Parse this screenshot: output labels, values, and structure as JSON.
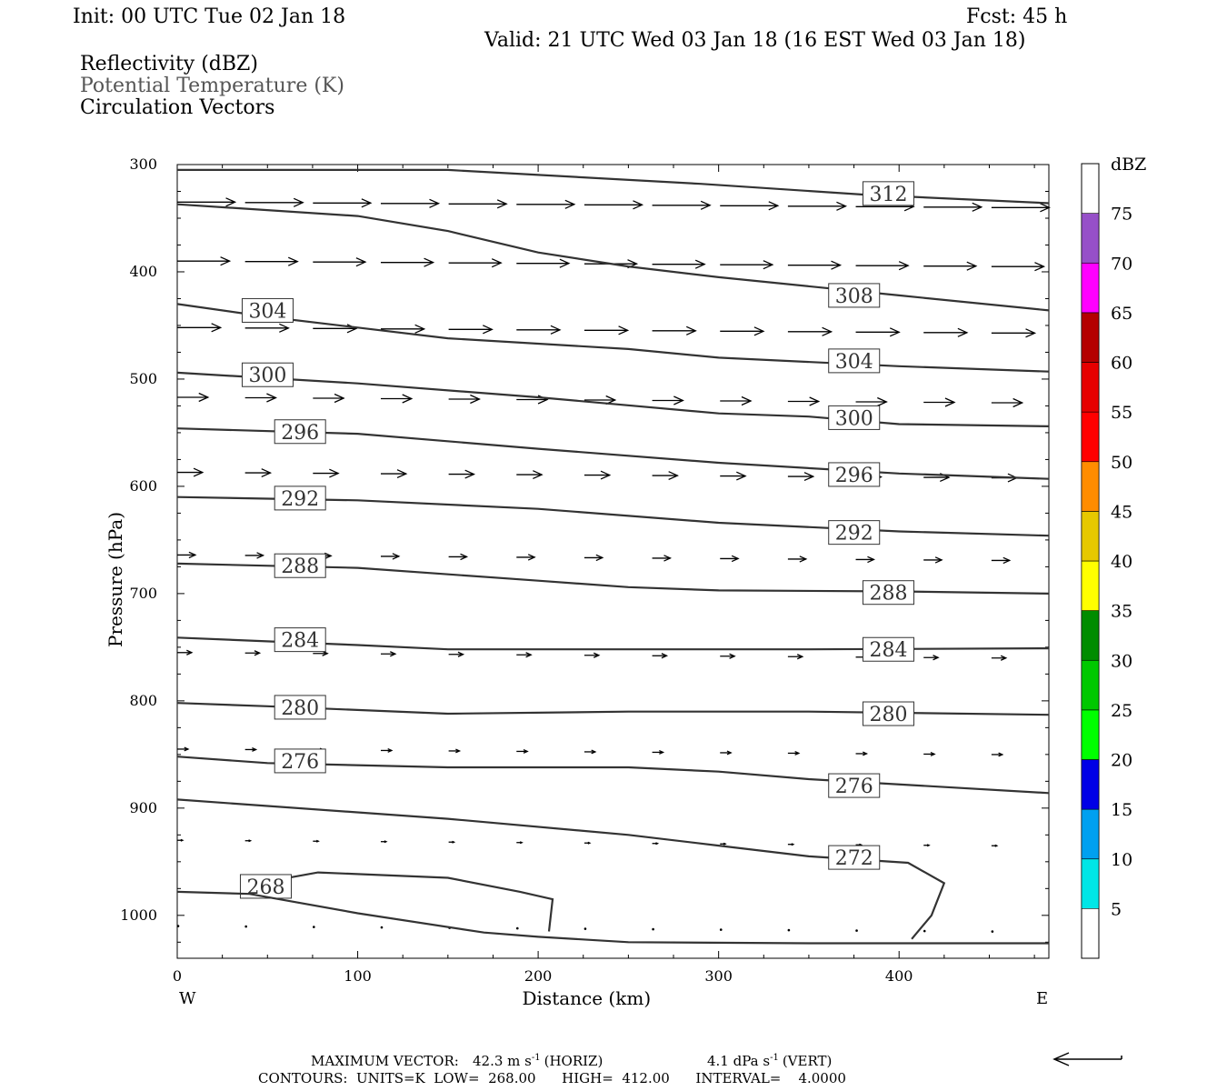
{
  "header": {
    "init": "Init: 00 UTC Tue 02 Jan 18",
    "fcst": "Fcst:   45 h",
    "valid": "Valid: 21 UTC Wed 03 Jan 18 (16 EST Wed 03 Jan 18)",
    "legend_lines": [
      {
        "text": "Reflectivity (dBZ)",
        "color": "#000000"
      },
      {
        "text": "Potential Temperature (K)",
        "color": "#555555"
      },
      {
        "text": "Circulation Vectors",
        "color": "#000000"
      }
    ]
  },
  "footer": {
    "max_vector_prefix": "MAXIMUM VECTOR:",
    "max_vector_horiz": "42.3 m s",
    "max_vector_horiz_suffix": "(HORIZ)",
    "max_vector_vert": "4.1 dPa s",
    "max_vector_vert_suffix": "(VERT)",
    "exponent": "-1",
    "contours_line": "CONTOURS:  UNITS=K  LOW=  268.00      HIGH=  412.00      INTERVAL=    4.0000"
  },
  "colors": {
    "contour": "#333333",
    "vector": "#000000",
    "axis": "#000000"
  },
  "chart_data": {
    "type": "cross-section",
    "xlabel": "Distance (km)",
    "ylabel": "Pressure (hPa)",
    "xlim": [
      0,
      483
    ],
    "ylim": [
      1040,
      300
    ],
    "x_ticks": [
      0,
      100,
      200,
      300,
      400
    ],
    "y_ticks": [
      300,
      400,
      500,
      600,
      700,
      800,
      900,
      1000
    ],
    "x_end_labels": {
      "left": "W",
      "right": "E"
    },
    "contour_units": "K",
    "contours": [
      {
        "label": "312",
        "points": [
          [
            0,
            305
          ],
          [
            150,
            305
          ],
          [
            290,
            318
          ],
          [
            380,
            328
          ],
          [
            483,
            336
          ]
        ],
        "labels_at": [
          [
            382,
            327
          ]
        ]
      },
      {
        "label": "308",
        "points": [
          [
            0,
            337
          ],
          [
            100,
            348
          ],
          [
            150,
            362
          ],
          [
            200,
            382
          ],
          [
            250,
            395
          ],
          [
            300,
            405
          ],
          [
            400,
            422
          ],
          [
            483,
            436
          ]
        ],
        "labels_at": [
          [
            363,
            422
          ]
        ]
      },
      {
        "label": "304",
        "points": [
          [
            0,
            430
          ],
          [
            50,
            442
          ],
          [
            150,
            462
          ],
          [
            250,
            472
          ],
          [
            300,
            480
          ],
          [
            400,
            488
          ],
          [
            483,
            493
          ]
        ],
        "labels_at": [
          [
            38,
            436
          ],
          [
            363,
            483
          ]
        ]
      },
      {
        "label": "300",
        "points": [
          [
            0,
            494
          ],
          [
            100,
            504
          ],
          [
            200,
            517
          ],
          [
            300,
            532
          ],
          [
            350,
            535
          ],
          [
            400,
            542
          ],
          [
            483,
            544
          ]
        ],
        "labels_at": [
          [
            38,
            496
          ],
          [
            363,
            536
          ]
        ]
      },
      {
        "label": "296",
        "points": [
          [
            0,
            546
          ],
          [
            100,
            551
          ],
          [
            200,
            565
          ],
          [
            300,
            578
          ],
          [
            400,
            588
          ],
          [
            483,
            593
          ]
        ],
        "labels_at": [
          [
            56,
            549
          ],
          [
            363,
            589
          ]
        ]
      },
      {
        "label": "292",
        "points": [
          [
            0,
            610
          ],
          [
            100,
            613
          ],
          [
            200,
            621
          ],
          [
            300,
            634
          ],
          [
            400,
            642
          ],
          [
            483,
            646
          ]
        ],
        "labels_at": [
          [
            56,
            611
          ],
          [
            363,
            643
          ]
        ]
      },
      {
        "label": "288",
        "points": [
          [
            0,
            672
          ],
          [
            100,
            676
          ],
          [
            200,
            688
          ],
          [
            250,
            694
          ],
          [
            300,
            697
          ],
          [
            400,
            698
          ],
          [
            483,
            700
          ]
        ],
        "labels_at": [
          [
            56,
            674
          ],
          [
            382,
            699
          ]
        ]
      },
      {
        "label": "284",
        "points": [
          [
            0,
            741
          ],
          [
            100,
            748
          ],
          [
            150,
            752
          ],
          [
            250,
            752
          ],
          [
            350,
            752
          ],
          [
            483,
            751
          ]
        ],
        "labels_at": [
          [
            56,
            743
          ],
          [
            382,
            752
          ]
        ]
      },
      {
        "label": "280",
        "points": [
          [
            0,
            802
          ],
          [
            50,
            805
          ],
          [
            150,
            812
          ],
          [
            250,
            810
          ],
          [
            350,
            810
          ],
          [
            483,
            813
          ]
        ],
        "labels_at": [
          [
            56,
            806
          ],
          [
            382,
            812
          ]
        ]
      },
      {
        "label": "276",
        "points": [
          [
            0,
            852
          ],
          [
            50,
            858
          ],
          [
            150,
            862
          ],
          [
            250,
            862
          ],
          [
            300,
            866
          ],
          [
            350,
            873
          ],
          [
            483,
            886
          ]
        ],
        "labels_at": [
          [
            56,
            856
          ],
          [
            363,
            879
          ]
        ]
      },
      {
        "label": "272",
        "points": [
          [
            0,
            892
          ],
          [
            50,
            898
          ],
          [
            150,
            910
          ],
          [
            250,
            925
          ],
          [
            300,
            935
          ],
          [
            350,
            945
          ],
          [
            405,
            951
          ],
          [
            425,
            970
          ],
          [
            418,
            1000
          ],
          [
            407,
            1022
          ]
        ],
        "labels_at": [
          [
            363,
            946
          ]
        ]
      },
      {
        "label": "268",
        "points": [
          [
            45,
            970
          ],
          [
            78,
            960
          ],
          [
            150,
            965
          ],
          [
            190,
            978
          ],
          [
            208,
            985
          ],
          [
            206,
            1015
          ]
        ],
        "labels_at": [
          [
            37,
            973
          ]
        ]
      },
      {
        "label": "",
        "points": [
          [
            0,
            978
          ],
          [
            40,
            980
          ],
          [
            100,
            998
          ],
          [
            170,
            1016
          ],
          [
            200,
            1020
          ],
          [
            250,
            1025
          ],
          [
            350,
            1026
          ],
          [
            483,
            1026
          ]
        ],
        "labels_at": []
      }
    ],
    "vector_rows": [
      {
        "pressure": 335,
        "length_km": 32,
        "x_start": 0,
        "x_end": 483
      },
      {
        "pressure": 390,
        "length_km": 29,
        "x_start": 0,
        "x_end": 483
      },
      {
        "pressure": 452,
        "length_km": 24,
        "x_start": 0,
        "x_end": 483
      },
      {
        "pressure": 517,
        "length_km": 17,
        "x_start": 0,
        "x_end": 483
      },
      {
        "pressure": 587,
        "length_km": 14,
        "x_start": 0,
        "x_end": 483
      },
      {
        "pressure": 664,
        "length_km": 10,
        "x_start": 0,
        "x_end": 483
      },
      {
        "pressure": 755,
        "length_km": 8,
        "x_start": 0,
        "x_end": 483
      },
      {
        "pressure": 845,
        "length_km": 6,
        "x_start": 0,
        "x_end": 483
      },
      {
        "pressure": 930,
        "length_km": 3,
        "x_start": 0,
        "x_end": 483
      },
      {
        "pressure": 1010,
        "length_km": 1,
        "x_start": 0,
        "x_end": 483
      }
    ],
    "colorbar": {
      "label": "dBZ",
      "levels": [
        5,
        10,
        15,
        20,
        25,
        30,
        35,
        40,
        45,
        50,
        55,
        60,
        65,
        70,
        75
      ],
      "colors": [
        "#00e6e6",
        "#00a0f0",
        "#0000e6",
        "#00ff00",
        "#00c800",
        "#008c00",
        "#ffff00",
        "#e6c800",
        "#ff8c00",
        "#ff0000",
        "#e60000",
        "#b40000",
        "#ff00ff",
        "#9650c8"
      ]
    }
  }
}
